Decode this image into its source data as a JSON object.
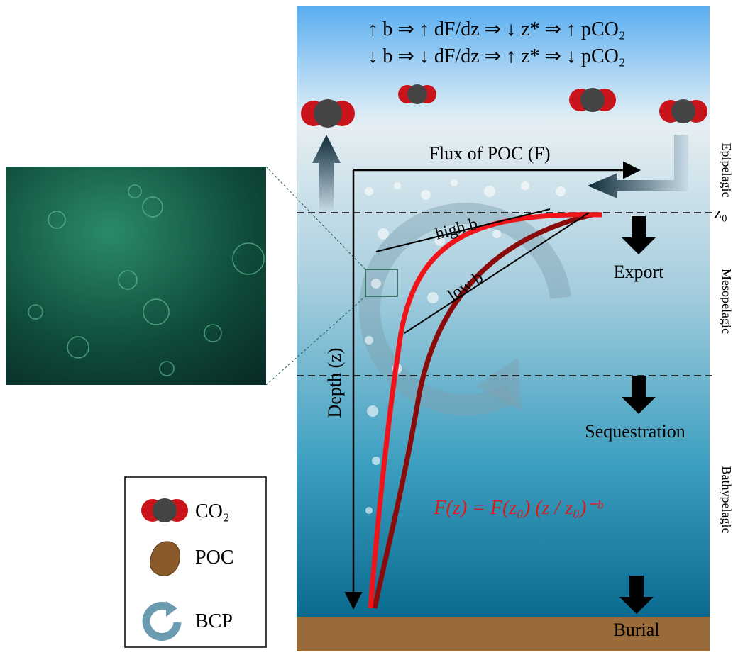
{
  "equations": [
    "↑ b ⇒ ↑ dF/dz ⇒ ↓ z* ⇒ ↑ pCO₂",
    "↓ b ⇒ ↓ dF/dz ⇒ ↑ z* ⇒ ↓ pCO₂"
  ],
  "axes": {
    "x_label": "Flux of POC (F)",
    "y_label": "Depth (z)",
    "z0": "z₀"
  },
  "curves": {
    "high": "high b",
    "low": "low b"
  },
  "stages": [
    "Export",
    "Sequestration",
    "Burial"
  ],
  "zones": [
    "Epipelagic",
    "Mesopelagic",
    "Bathypelagic"
  ],
  "formula": "F(z) = F(z₀) (z / z₀)⁻ᵇ",
  "legend": [
    "CO₂",
    "POC",
    "BCP"
  ]
}
